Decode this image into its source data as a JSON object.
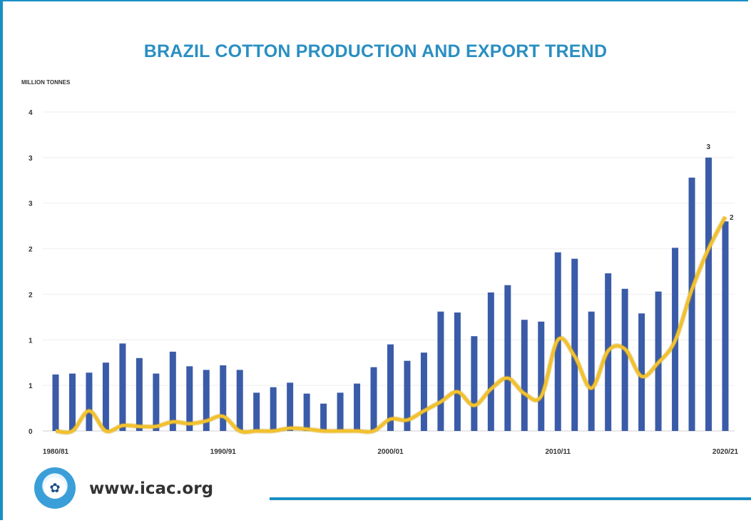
{
  "chart_data": {
    "type": "bar",
    "title": "BRAZIL COTTON PRODUCTION AND EXPORT TREND",
    "ylabel": "MILLION TONNES",
    "y_tick_labels": [
      "0",
      "1",
      "1",
      "2",
      "2",
      "3",
      "3",
      "4"
    ],
    "ylim": [
      0,
      3.5
    ],
    "grid": true,
    "legend": "none",
    "x_tick_labels": [
      "1980/81",
      "1990/91",
      "2000/01",
      "2010/11",
      "2020/21"
    ],
    "categories": [
      "1980/81",
      "1981/82",
      "1982/83",
      "1983/84",
      "1984/85",
      "1985/86",
      "1986/87",
      "1987/88",
      "1988/89",
      "1989/90",
      "1990/91",
      "1991/92",
      "1992/93",
      "1993/94",
      "1994/95",
      "1995/96",
      "1996/97",
      "1997/98",
      "1998/99",
      "1999/00",
      "2000/01",
      "2001/02",
      "2002/03",
      "2003/04",
      "2004/05",
      "2005/06",
      "2006/07",
      "2007/08",
      "2008/09",
      "2009/10",
      "2010/11",
      "2011/12",
      "2012/13",
      "2013/14",
      "2014/15",
      "2015/16",
      "2016/17",
      "2017/18",
      "2018/19",
      "2019/20",
      "2020/21"
    ],
    "series": [
      {
        "values": [
          0.62,
          0.63,
          0.64,
          0.75,
          0.96,
          0.8,
          0.63,
          0.87,
          0.71,
          0.67,
          0.72,
          0.67,
          0.42,
          0.48,
          0.53,
          0.41,
          0.3,
          0.42,
          0.52,
          0.7,
          0.95,
          0.77,
          0.86,
          1.31,
          1.3,
          1.04,
          1.52,
          1.6,
          1.22,
          1.2,
          1.96,
          1.89,
          1.31,
          1.73,
          1.56,
          1.29,
          1.53,
          2.01,
          2.78,
          3.0,
          2.3
        ],
        "color": "#3a5ba8"
      },
      {
        "values": [
          0.0,
          0.0,
          0.22,
          0.0,
          0.06,
          0.05,
          0.05,
          0.1,
          0.08,
          0.11,
          0.16,
          0.0,
          0.0,
          0.0,
          0.03,
          0.02,
          0.0,
          0.0,
          0.0,
          0.0,
          0.13,
          0.12,
          0.22,
          0.32,
          0.43,
          0.28,
          0.46,
          0.58,
          0.41,
          0.38,
          1.0,
          0.82,
          0.47,
          0.88,
          0.9,
          0.6,
          0.75,
          0.99,
          1.55,
          2.0,
          2.35
        ],
        "color": "#f2c12e"
      }
    ],
    "annotations": [
      {
        "text": "3",
        "category": "2019/20"
      },
      {
        "text": "2",
        "category": "2020/21"
      }
    ]
  },
  "footer": {
    "url": "www.icac.org",
    "logo_text": "ICAC"
  },
  "colors": {
    "title": "#2a8fc2",
    "frame": "#1a8fc4",
    "bar": "#3a5ba8",
    "line": "#f2c12e"
  }
}
